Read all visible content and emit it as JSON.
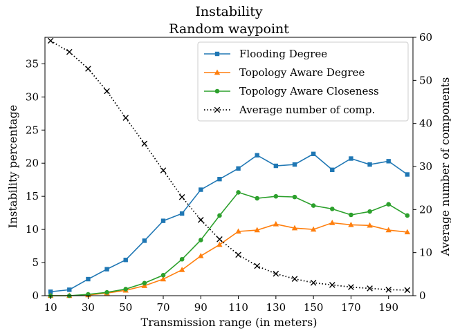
{
  "chart_data": {
    "type": "line",
    "title": "Instability",
    "subtitle": "Random waypoint",
    "xlabel": "Transmission range (in meters)",
    "ylabel": "Instability percentage",
    "ylabel_right": "Average number of components",
    "xlim": [
      7,
      203
    ],
    "ylim": [
      0,
      39
    ],
    "ylim_right": [
      0,
      60
    ],
    "x_ticks": [
      10,
      30,
      50,
      70,
      90,
      110,
      130,
      150,
      170,
      190
    ],
    "y_ticks": [
      0,
      5,
      10,
      15,
      20,
      25,
      30,
      35
    ],
    "y_ticks_right": [
      0,
      10,
      20,
      30,
      40,
      50,
      60
    ],
    "grid": false,
    "legend_position": "top-right",
    "x": [
      10,
      20,
      30,
      40,
      50,
      60,
      70,
      80,
      90,
      100,
      110,
      120,
      130,
      140,
      150,
      160,
      170,
      180,
      190,
      200
    ],
    "series": [
      {
        "name": "Flooding Degree",
        "axis": "left",
        "color": "#1f77b4",
        "marker": "square",
        "line": "solid",
        "values": [
          0.6,
          0.9,
          2.5,
          4.0,
          5.4,
          8.3,
          11.3,
          12.4,
          16.0,
          17.6,
          19.2,
          21.2,
          19.6,
          19.8,
          21.4,
          19.0,
          20.7,
          19.8,
          20.3,
          18.3
        ]
      },
      {
        "name": "Topology Aware Degree",
        "axis": "left",
        "color": "#ff7f0e",
        "marker": "triangle",
        "line": "solid",
        "values": [
          0.0,
          0.0,
          0.1,
          0.4,
          0.8,
          1.5,
          2.5,
          3.9,
          6.0,
          7.7,
          9.7,
          9.9,
          10.8,
          10.2,
          10.0,
          11.0,
          10.7,
          10.6,
          9.9,
          9.6
        ]
      },
      {
        "name": "Topology Aware Closeness",
        "axis": "left",
        "color": "#2ca02c",
        "marker": "circle",
        "line": "solid",
        "values": [
          0.0,
          0.0,
          0.2,
          0.5,
          1.0,
          1.9,
          3.1,
          5.5,
          8.4,
          12.1,
          15.6,
          14.7,
          15.0,
          14.9,
          13.6,
          13.1,
          12.2,
          12.7,
          13.8,
          12.1
        ]
      },
      {
        "name": "Average number of comp.",
        "axis": "right",
        "color": "#000000",
        "marker": "x",
        "line": "dotted",
        "values": [
          59.2,
          56.6,
          52.7,
          47.5,
          41.3,
          35.3,
          29.1,
          22.9,
          17.6,
          13.1,
          9.5,
          6.9,
          5.1,
          3.9,
          3.0,
          2.5,
          2.0,
          1.7,
          1.4,
          1.3
        ]
      }
    ]
  }
}
